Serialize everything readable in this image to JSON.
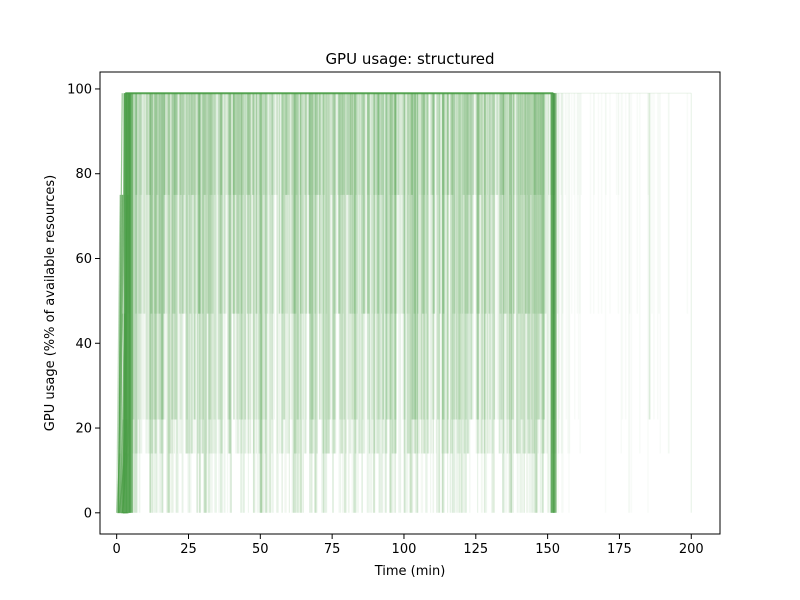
{
  "chart_data": {
    "type": "line",
    "title": "GPU usage: structured",
    "xlabel": "Time (min)",
    "ylabel": "GPU usage (%% of available resources)",
    "xlim": [
      -5.8,
      210
    ],
    "ylim": [
      -5,
      104
    ],
    "xticks": [
      0,
      25,
      50,
      75,
      100,
      125,
      150,
      175,
      200
    ],
    "yticks": [
      0,
      20,
      40,
      60,
      80,
      100
    ],
    "grid": false,
    "legend": "none",
    "series_color": "#4a9e46",
    "usage_levels_percent": [
      0,
      14,
      22,
      47,
      75,
      99
    ],
    "dense_window_min": [
      3,
      152
    ],
    "sparse_window_min": [
      152,
      200
    ],
    "series": [
      {
        "x": [
          0,
          1,
          2,
          3,
          4,
          150,
          152,
          153
        ],
        "y": [
          0,
          18,
          47,
          99,
          99,
          99,
          99,
          0
        ]
      },
      {
        "x": [
          1,
          2,
          4,
          151,
          153
        ],
        "y": [
          0,
          14,
          99,
          99,
          0
        ]
      },
      {
        "x": [
          2,
          3,
          5,
          152,
          154
        ],
        "y": [
          0,
          22,
          99,
          99,
          0
        ]
      },
      {
        "x": [
          3,
          4,
          153,
          163
        ],
        "y": [
          0,
          99,
          99,
          0
        ]
      },
      {
        "x": [
          3,
          5,
          185,
          186
        ],
        "y": [
          0,
          99,
          99,
          22
        ]
      },
      {
        "x": [
          4,
          6,
          200,
          201
        ],
        "y": [
          0,
          99,
          99,
          0
        ]
      }
    ]
  }
}
